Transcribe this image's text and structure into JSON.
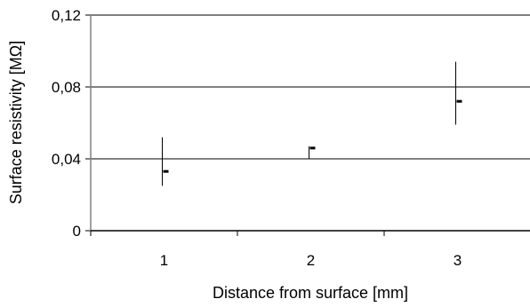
{
  "chart_data": {
    "type": "scatter",
    "title": "",
    "xlabel": "Distance from surface [mm]",
    "ylabel": "Surface resistivity [MΩ]",
    "categories": [
      "1",
      "2",
      "3"
    ],
    "ylim": [
      0,
      0.12
    ],
    "y_ticks": [
      {
        "value": 0,
        "label": "0"
      },
      {
        "value": 0.04,
        "label": "0,04"
      },
      {
        "value": 0.08,
        "label": "0,08"
      },
      {
        "value": 0.12,
        "label": "0,12"
      }
    ],
    "grid": true,
    "legend": "none",
    "series": [
      {
        "points": [
          {
            "category": "1",
            "y": 0.033,
            "err_low": 0.025,
            "err_high": 0.052
          },
          {
            "category": "2",
            "y": 0.046,
            "err_low": 0.04,
            "err_high": 0.047
          },
          {
            "category": "3",
            "y": 0.072,
            "err_low": 0.059,
            "err_high": 0.094
          }
        ]
      }
    ]
  }
}
